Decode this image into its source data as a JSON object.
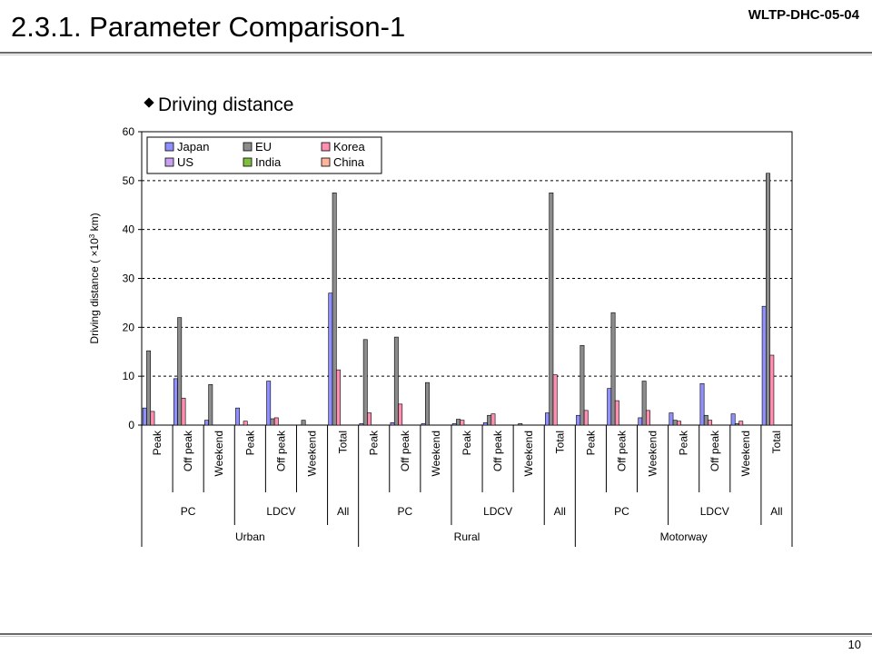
{
  "header": {
    "title": "2.3.1. Parameter Comparison-1",
    "doc_code": "WLTP-DHC-05-04"
  },
  "bullet": "Driving distance",
  "footer": {
    "page_number": "10"
  },
  "chart_data": {
    "type": "bar",
    "title": "",
    "ylabel_prefix": "Driving distance ( ×10",
    "ylabel_exp": "3",
    "ylabel_suffix": " km)",
    "ylim": [
      0,
      60
    ],
    "yticks": [
      0,
      10,
      20,
      30,
      40,
      50,
      60
    ],
    "grid": "dashed horizontal at 10,20,30,40,50",
    "legend_position": "top-left",
    "series": [
      {
        "name": "Japan",
        "color": "#8f8fff"
      },
      {
        "name": "EU",
        "color": "#8c8c8c"
      },
      {
        "name": "Korea",
        "color": "#ff8fb0"
      },
      {
        "name": "US",
        "color": "#c8a0f0"
      },
      {
        "name": "India",
        "color": "#7fbf3f"
      },
      {
        "name": "China",
        "color": "#ffb59a"
      }
    ],
    "legend_order": [
      [
        "Japan",
        "EU",
        "Korea"
      ],
      [
        "US",
        "India",
        "China"
      ]
    ],
    "categories": [
      "Peak",
      "Off peak",
      "Weekend",
      "Peak",
      "Off peak",
      "Weekend",
      "Total",
      "Peak",
      "Off peak",
      "Weekend",
      "Peak",
      "Off peak",
      "Weekend",
      "Total",
      "Peak",
      "Off peak",
      "Weekend",
      "Peak",
      "Off peak",
      "Weekend",
      "Total"
    ],
    "vehicle_groups": [
      {
        "label": "PC",
        "span": 3
      },
      {
        "label": "LDCV",
        "span": 3
      },
      {
        "label": "All",
        "span": 1
      },
      {
        "label": "PC",
        "span": 3
      },
      {
        "label": "LDCV",
        "span": 3
      },
      {
        "label": "All",
        "span": 1
      },
      {
        "label": "PC",
        "span": 3
      },
      {
        "label": "LDCV",
        "span": 3
      },
      {
        "label": "All",
        "span": 1
      }
    ],
    "road_groups": [
      {
        "label": "Urban",
        "span": 7
      },
      {
        "label": "Rural",
        "span": 7
      },
      {
        "label": "Motorway",
        "span": 7
      }
    ],
    "values": {
      "Japan": [
        3.5,
        9.5,
        1.0,
        3.5,
        9.0,
        0.0,
        27.0,
        0.3,
        0.5,
        0.3,
        0.3,
        0.5,
        0.0,
        2.5,
        2.0,
        7.5,
        1.5,
        2.5,
        8.5,
        2.3,
        24.3
      ],
      "EU": [
        15.2,
        22.0,
        8.3,
        0.0,
        1.3,
        1.0,
        47.5,
        17.5,
        18.0,
        8.7,
        1.2,
        2.0,
        0.3,
        47.5,
        16.3,
        23.0,
        9.0,
        1.0,
        2.0,
        0.3,
        51.5
      ],
      "Korea": [
        2.8,
        5.5,
        0.0,
        0.8,
        1.5,
        0.0,
        11.3,
        2.5,
        4.3,
        0.0,
        1.0,
        2.3,
        0.0,
        10.3,
        3.0,
        5.0,
        3.0,
        0.8,
        1.0,
        0.8,
        14.3
      ],
      "US": [
        0.0,
        0.0,
        0.0,
        0.0,
        0.0,
        0.0,
        0.0,
        0.0,
        0.0,
        0.0,
        0.0,
        0.0,
        0.0,
        0.0,
        0.0,
        0.0,
        0.0,
        0.0,
        0.0,
        0.0,
        0.0
      ],
      "India": [
        0.0,
        0.0,
        0.0,
        0.0,
        0.0,
        0.0,
        0.0,
        0.0,
        0.0,
        0.0,
        0.0,
        0.0,
        0.0,
        0.0,
        0.0,
        0.0,
        0.0,
        0.0,
        0.0,
        0.0,
        0.0
      ],
      "China": [
        0.0,
        0.0,
        0.0,
        0.0,
        0.0,
        0.0,
        0.0,
        0.0,
        0.0,
        0.0,
        0.0,
        0.0,
        0.0,
        0.0,
        0.0,
        0.0,
        0.0,
        0.0,
        0.0,
        0.0,
        0.0
      ]
    }
  }
}
